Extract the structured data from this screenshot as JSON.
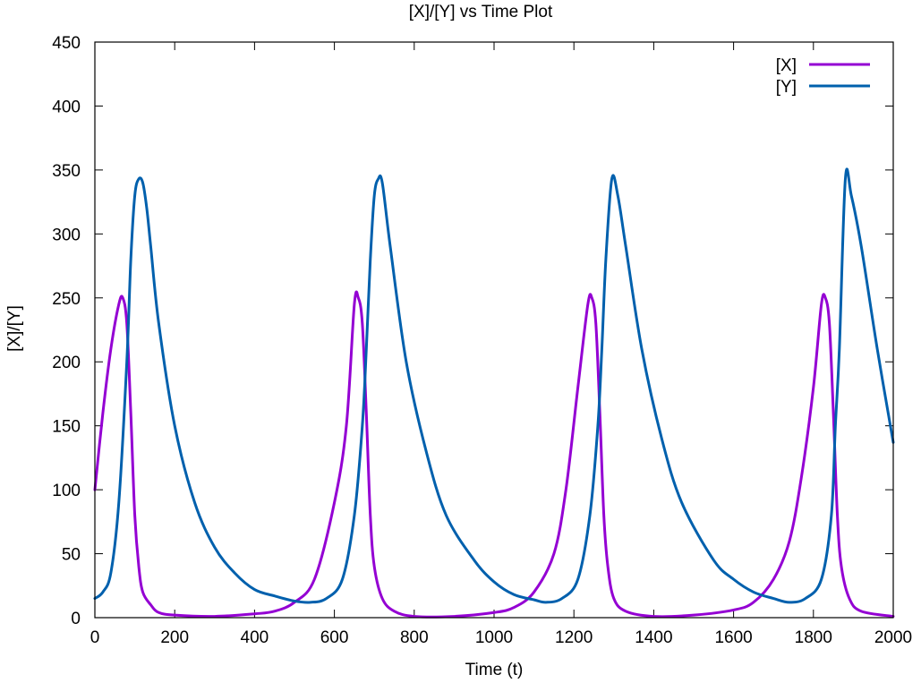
{
  "chart_data": {
    "type": "line",
    "title": "[X]/[Y] vs Time Plot",
    "xlabel": "Time (t)",
    "ylabel": "[X]/[Y]",
    "xlim": [
      0,
      2000
    ],
    "ylim": [
      0,
      450
    ],
    "xticks": [
      0,
      200,
      400,
      600,
      800,
      1000,
      1200,
      1400,
      1600,
      1800,
      2000
    ],
    "yticks": [
      0,
      50,
      100,
      150,
      200,
      250,
      300,
      350,
      400,
      450
    ],
    "grid": false,
    "legend_position": "top-right",
    "series": [
      {
        "name": "[X]",
        "color": "#9400d3",
        "x": [
          0,
          20,
          40,
          60,
          70,
          80,
          90,
          100,
          110,
          120,
          140,
          160,
          200,
          300,
          400,
          450,
          500,
          550,
          600,
          630,
          650,
          660,
          670,
          680,
          690,
          700,
          720,
          750,
          800,
          900,
          1000,
          1050,
          1100,
          1150,
          1180,
          1210,
          1235,
          1245,
          1255,
          1265,
          1275,
          1285,
          1300,
          1330,
          1400,
          1500,
          1600,
          1650,
          1700,
          1740,
          1770,
          1800,
          1820,
          1830,
          1840,
          1850,
          1860,
          1870,
          1890,
          1920,
          2000
        ],
        "values": [
          100,
          160,
          210,
          245,
          250,
          230,
          160,
          80,
          40,
          20,
          10,
          4,
          2,
          1,
          3,
          5,
          12,
          30,
          90,
          150,
          245,
          250,
          230,
          160,
          80,
          40,
          15,
          5,
          1,
          1,
          4,
          8,
          20,
          50,
          100,
          180,
          245,
          250,
          230,
          160,
          80,
          40,
          15,
          5,
          1,
          2,
          6,
          12,
          30,
          60,
          110,
          180,
          245,
          250,
          230,
          160,
          80,
          40,
          15,
          5,
          1
        ]
      },
      {
        "name": "[Y]",
        "color": "#0060ad",
        "x": [
          0,
          20,
          40,
          60,
          80,
          90,
          100,
          110,
          120,
          130,
          140,
          160,
          200,
          250,
          300,
          350,
          400,
          450,
          500,
          540,
          580,
          620,
          650,
          670,
          680,
          690,
          700,
          710,
          720,
          740,
          780,
          830,
          880,
          950,
          1000,
          1050,
          1100,
          1130,
          1170,
          1210,
          1240,
          1260,
          1270,
          1280,
          1295,
          1310,
          1330,
          1370,
          1420,
          1470,
          1550,
          1600,
          1650,
          1700,
          1740,
          1780,
          1820,
          1845,
          1855,
          1865,
          1880,
          1895,
          1920,
          1960,
          2000
        ],
        "values": [
          15,
          20,
          35,
          90,
          200,
          280,
          330,
          343,
          340,
          320,
          290,
          230,
          150,
          90,
          55,
          35,
          22,
          17,
          13,
          12,
          15,
          30,
          80,
          150,
          210,
          280,
          330,
          343,
          340,
          290,
          200,
          130,
          80,
          45,
          28,
          18,
          14,
          12,
          15,
          30,
          80,
          150,
          210,
          280,
          343,
          330,
          290,
          210,
          140,
          90,
          45,
          30,
          20,
          15,
          12,
          15,
          30,
          80,
          150,
          210,
          343,
          330,
          290,
          210,
          137
        ]
      }
    ]
  }
}
